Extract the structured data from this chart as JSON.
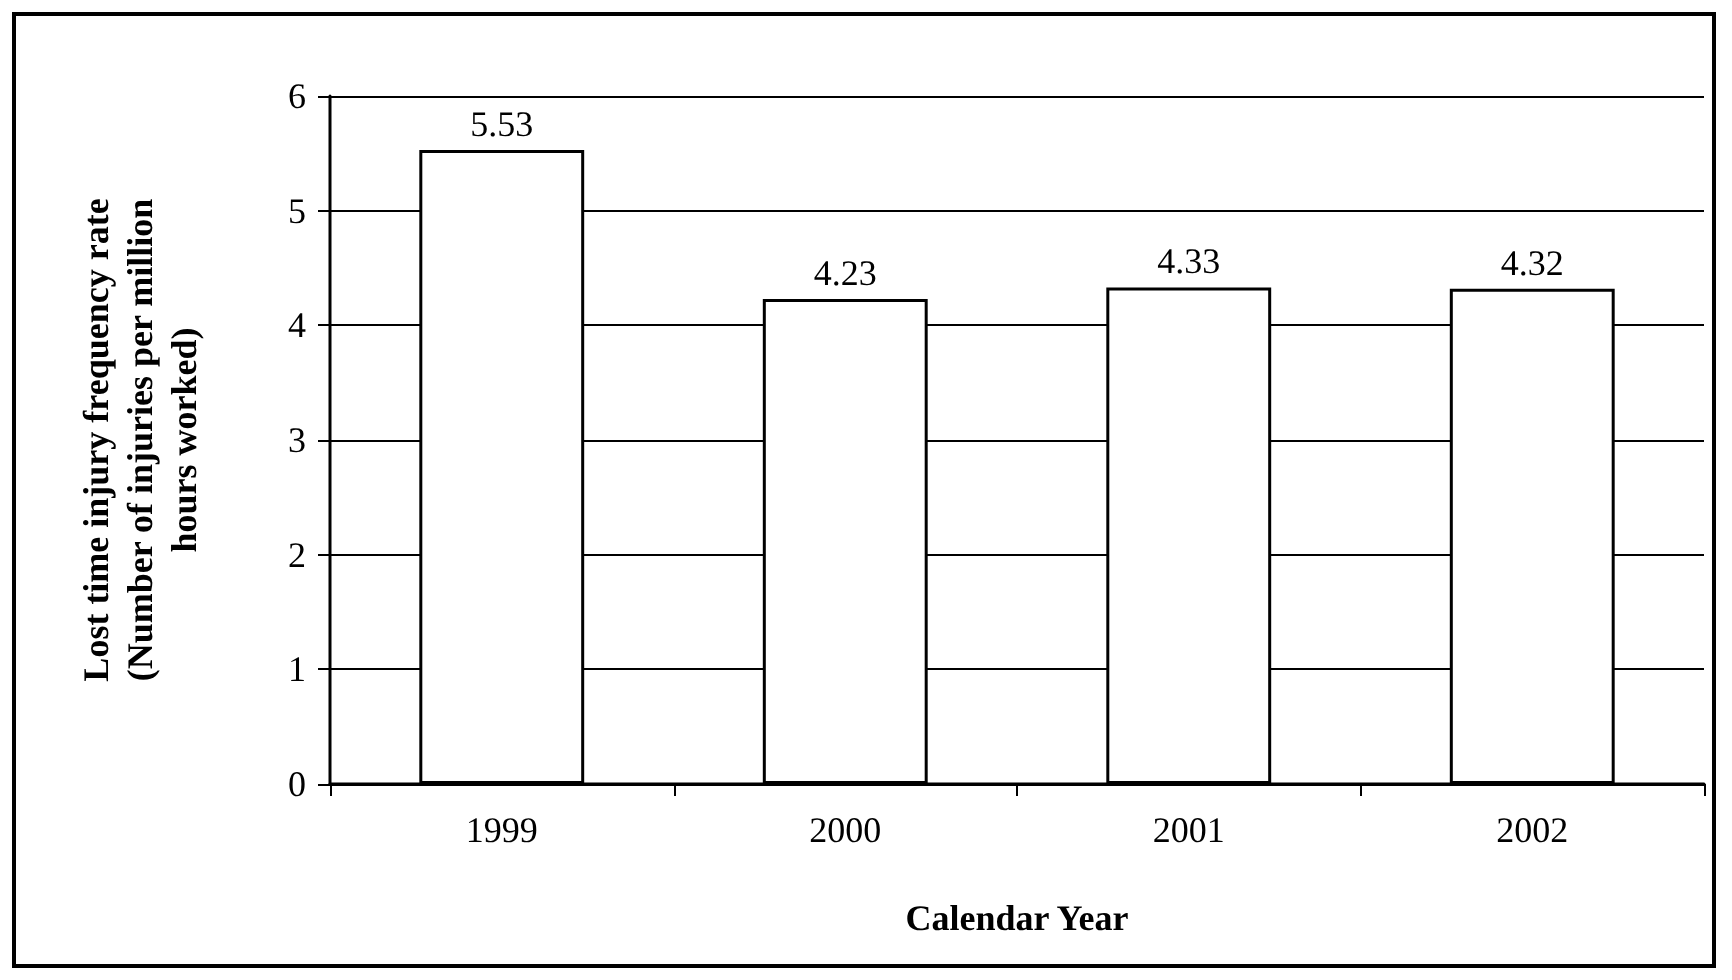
{
  "chart_data": {
    "type": "bar",
    "xlabel": "Calendar Year",
    "ylabel": "Lost time injury frequency rate (Number of injuries per million hours worked)",
    "categories": [
      "1999",
      "2000",
      "2001",
      "2002"
    ],
    "values": [
      5.53,
      4.23,
      4.33,
      4.32
    ],
    "color": "#ffffff",
    "ylim": [
      0,
      6
    ],
    "yticks": [
      0,
      1,
      2,
      3,
      4,
      5,
      6
    ],
    "grid": "y",
    "data_labels": true
  }
}
